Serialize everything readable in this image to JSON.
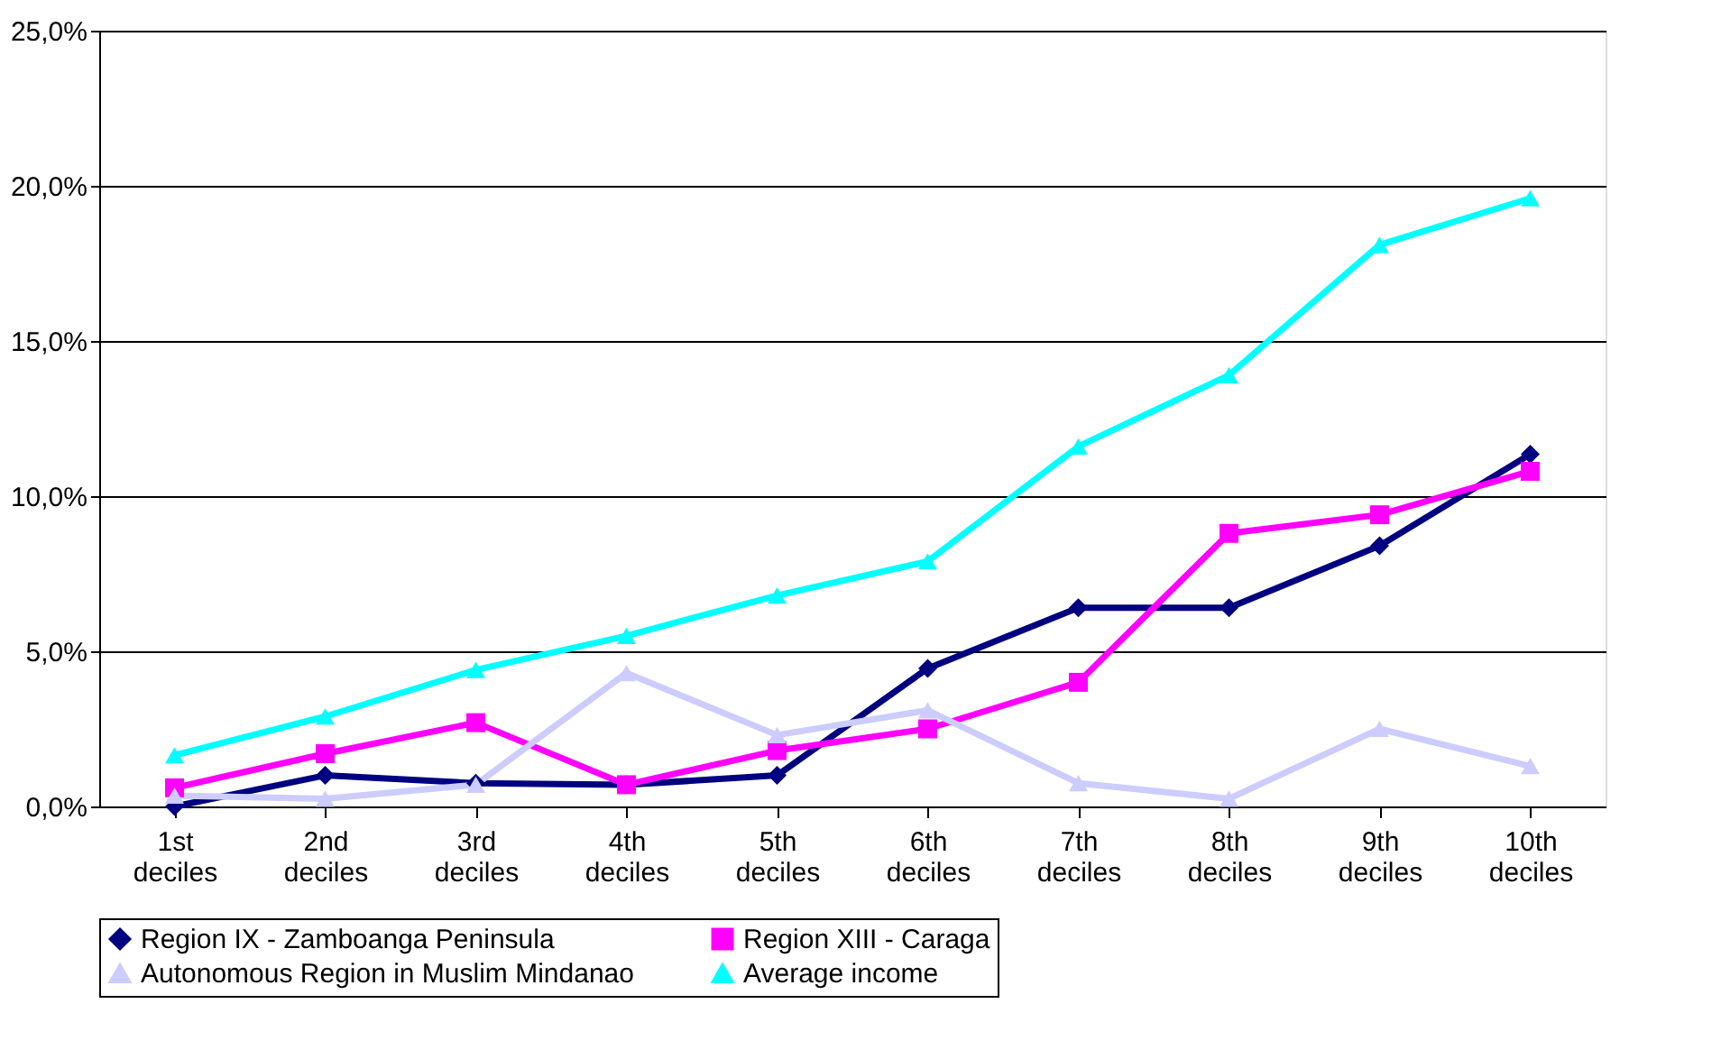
{
  "chart_data": {
    "type": "line",
    "categories": [
      "1st deciles",
      "2nd deciles",
      "3rd deciles",
      "4th deciles",
      "5th deciles",
      "6th deciles",
      "7th deciles",
      "8th deciles",
      "9th deciles",
      "10th deciles"
    ],
    "series": [
      {
        "name": "Region IX - Zamboanga Peninsula",
        "color": "#000080",
        "marker": "diamond",
        "values": [
          0.0,
          1.0,
          0.75,
          0.7,
          1.0,
          4.45,
          6.4,
          6.4,
          8.4,
          11.35
        ]
      },
      {
        "name": "Region XIII - Caraga",
        "color": "#ff00ff",
        "marker": "square",
        "values": [
          0.6,
          1.7,
          2.7,
          0.7,
          1.8,
          2.5,
          4.0,
          8.8,
          9.4,
          10.8
        ]
      },
      {
        "name": "Autonomous Region in Muslim Mindanao",
        "color": "#ccccff",
        "marker": "triangle",
        "values": [
          0.35,
          0.25,
          0.7,
          4.3,
          2.3,
          3.1,
          0.75,
          0.25,
          2.5,
          1.3
        ]
      },
      {
        "name": "Average income",
        "color": "#00ffff",
        "marker": "triangle",
        "values": [
          1.65,
          2.9,
          4.4,
          5.5,
          6.8,
          7.9,
          11.6,
          13.9,
          18.1,
          19.6
        ]
      }
    ],
    "ylim": [
      0,
      25
    ],
    "yticks": [
      {
        "value": 0,
        "label": "0,0%"
      },
      {
        "value": 5,
        "label": "5,0%"
      },
      {
        "value": 10,
        "label": "10,0%"
      },
      {
        "value": 15,
        "label": "15,0%"
      },
      {
        "value": 20,
        "label": "20,0%"
      },
      {
        "value": 25,
        "label": "25,0%"
      }
    ],
    "grid": "y",
    "legend": "bottom",
    "line_style": "solid"
  }
}
